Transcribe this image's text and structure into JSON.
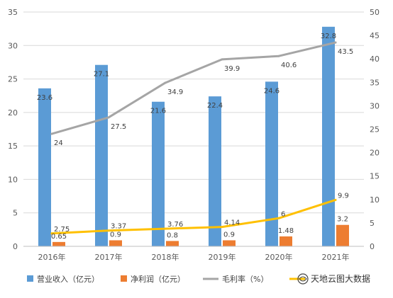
{
  "chart_data": {
    "type": "bar",
    "categories": [
      "2016年",
      "2017年",
      "2018年",
      "2019年",
      "2020年",
      "2021年"
    ],
    "series": [
      {
        "name": "营业收入（亿元）",
        "kind": "bar",
        "axis": "left",
        "color": "#5b9bd5",
        "values": [
          23.6,
          27.1,
          21.6,
          22.4,
          24.6,
          32.8
        ]
      },
      {
        "name": "净利润（亿元）",
        "kind": "bar",
        "axis": "left",
        "color": "#ed7d31",
        "values": [
          0.65,
          0.9,
          0.8,
          0.9,
          1.48,
          3.2
        ],
        "labels": [
          "0.65",
          "0.9",
          "0.8",
          "0.9",
          "1.48",
          "3.2"
        ]
      },
      {
        "name": "毛利率（%）",
        "kind": "line",
        "axis": "right",
        "color": "#a5a5a5",
        "values": [
          24,
          27.5,
          34.9,
          39.9,
          40.6,
          43.5
        ]
      },
      {
        "name": "",
        "kind": "line",
        "axis": "right",
        "color": "#ffc000",
        "values": [
          2.75,
          3.37,
          3.76,
          4.14,
          6,
          9.9
        ]
      }
    ],
    "y_left": {
      "min": 0,
      "max": 35,
      "ticks": [
        0,
        5,
        10,
        15,
        20,
        25,
        30,
        35
      ]
    },
    "y_right": {
      "min": 0,
      "max": 50,
      "ticks": [
        0,
        5,
        10,
        15,
        20,
        25,
        30,
        35,
        40,
        45,
        50
      ]
    },
    "grid": true,
    "legend_position": "bottom",
    "title": "",
    "xlabel": "",
    "ylabel": ""
  },
  "watermark": {
    "text": "天地云图大数据",
    "icon": "logo-icon"
  }
}
